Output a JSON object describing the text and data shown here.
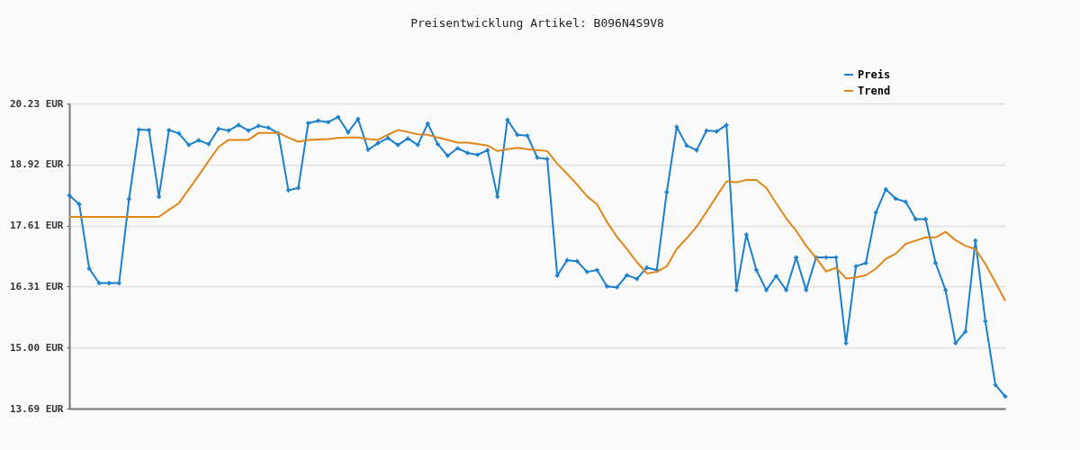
{
  "chart_data": {
    "type": "line",
    "title": "Preisentwicklung Artikel: B096N4S9V8",
    "categories": [
      null,
      null,
      null,
      null,
      null,
      null,
      null,
      null,
      null,
      null,
      null,
      null,
      null,
      null,
      null,
      null,
      null,
      null,
      null,
      null,
      null,
      null,
      null,
      null,
      null,
      null,
      null,
      null,
      null,
      null,
      null,
      null,
      null,
      null,
      null,
      null,
      null,
      null,
      null,
      null,
      null,
      null,
      null,
      null,
      null,
      null,
      null,
      null,
      null,
      null,
      null,
      null,
      null,
      null,
      null,
      null,
      null,
      null,
      null,
      null,
      null,
      null,
      null,
      null,
      null,
      null,
      null,
      null,
      null,
      null,
      null,
      null,
      null,
      null,
      null,
      null,
      null,
      null,
      null,
      null,
      null,
      null,
      null,
      null,
      null,
      null,
      null,
      null,
      null,
      null,
      null,
      null,
      null,
      null,
      null
    ],
    "series": [
      {
        "name": "Preis",
        "color": "#1a80cc",
        "marker": "cross",
        "values": [
          18.26,
          18.07,
          16.69,
          16.38,
          16.38,
          16.38,
          18.18,
          19.67,
          19.66,
          18.23,
          19.66,
          19.59,
          19.34,
          19.44,
          19.36,
          19.69,
          19.65,
          19.77,
          19.65,
          19.75,
          19.71,
          19.59,
          18.37,
          18.42,
          19.81,
          19.86,
          19.83,
          19.94,
          19.61,
          19.9,
          19.24,
          19.38,
          19.49,
          19.34,
          19.48,
          19.34,
          19.8,
          19.36,
          19.11,
          19.27,
          19.17,
          19.13,
          19.23,
          18.23,
          19.88,
          19.56,
          19.54,
          19.07,
          19.04,
          16.54,
          16.87,
          16.85,
          16.62,
          16.66,
          16.31,
          16.29,
          16.55,
          16.47,
          16.71,
          16.66,
          18.33,
          19.73,
          19.33,
          19.23,
          19.65,
          19.63,
          19.77,
          16.23,
          17.42,
          16.66,
          16.23,
          16.53,
          16.23,
          16.93,
          16.23,
          16.93,
          16.93,
          16.93,
          15.09,
          16.74,
          16.81,
          17.89,
          18.39,
          18.19,
          18.12,
          17.75,
          17.75,
          16.81,
          16.23,
          15.09,
          15.34,
          17.29,
          15.56,
          14.2,
          13.95
        ]
      },
      {
        "name": "Trend",
        "color": "#e0861a",
        "marker": "none",
        "values": [
          17.8,
          17.8,
          17.8,
          17.8,
          17.8,
          17.8,
          17.8,
          17.8,
          17.8,
          17.8,
          17.95,
          18.09,
          18.39,
          18.69,
          19.0,
          19.3,
          19.45,
          19.45,
          19.45,
          19.6,
          19.6,
          19.6,
          19.5,
          19.41,
          19.45,
          19.46,
          19.47,
          19.49,
          19.5,
          19.5,
          19.47,
          19.45,
          19.56,
          19.66,
          19.62,
          19.57,
          19.56,
          19.5,
          19.45,
          19.39,
          19.39,
          19.36,
          19.33,
          19.21,
          19.25,
          19.28,
          19.25,
          19.23,
          19.21,
          18.94,
          18.72,
          18.49,
          18.24,
          18.07,
          17.69,
          17.37,
          17.11,
          16.83,
          16.59,
          16.62,
          16.74,
          17.11,
          17.34,
          17.59,
          17.91,
          18.24,
          18.56,
          18.54,
          18.59,
          18.59,
          18.42,
          18.09,
          17.77,
          17.5,
          17.18,
          16.92,
          16.63,
          16.71,
          16.48,
          16.5,
          16.55,
          16.69,
          16.9,
          17.01,
          17.22,
          17.29,
          17.36,
          17.36,
          17.48,
          17.3,
          17.18,
          17.11,
          16.79,
          16.4,
          16.0
        ]
      }
    ],
    "ylim": [
      13.69,
      20.23
    ],
    "yticks": [
      {
        "value": 13.69,
        "label": "13.69 EUR"
      },
      {
        "value": 15.0,
        "label": "15.00 EUR"
      },
      {
        "value": 16.31,
        "label": "16.31 EUR"
      },
      {
        "value": 17.61,
        "label": "17.61 EUR"
      },
      {
        "value": 18.92,
        "label": "18.92 EUR"
      },
      {
        "value": 20.23,
        "label": "20.23 EUR"
      }
    ],
    "grid": "y",
    "legend": "top right",
    "tick_labels": "y",
    "line_style": "solid"
  }
}
